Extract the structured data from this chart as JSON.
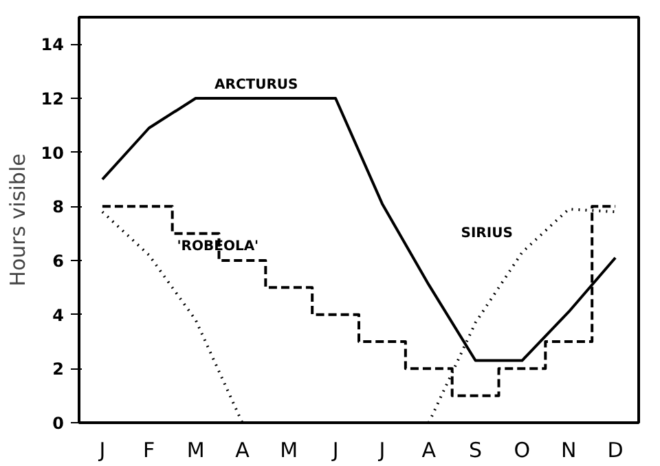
{
  "chart_data": {
    "type": "line",
    "ylabel": "Hours visible",
    "ylim": [
      0,
      15
    ],
    "yticks": [
      0,
      2,
      4,
      6,
      8,
      10,
      12,
      14
    ],
    "categories": [
      "J",
      "F",
      "M",
      "A",
      "M",
      "J",
      "J",
      "A",
      "S",
      "O",
      "N",
      "D"
    ],
    "grid": false,
    "marker": "none",
    "series": [
      {
        "name": "ARCTURUS",
        "color": "#000000",
        "line_style": "solid",
        "values": [
          9.0,
          10.9,
          12,
          12,
          12,
          12,
          8.1,
          5.1,
          2.3,
          2.3,
          4.1,
          6.1
        ]
      },
      {
        "name": "'ROBEOLA'",
        "type": "step",
        "color": "#000000",
        "line_style": "dashed",
        "values": [
          8,
          8,
          7,
          6,
          5,
          4,
          3,
          2,
          1,
          2,
          3,
          8
        ]
      },
      {
        "name": "SIRIUS",
        "color": "#000000",
        "line_style": "dotted",
        "values": [
          7.8,
          6.2,
          3.8,
          0,
          null,
          null,
          null,
          0,
          3.7,
          6.3,
          7.9,
          7.8
        ]
      }
    ]
  }
}
